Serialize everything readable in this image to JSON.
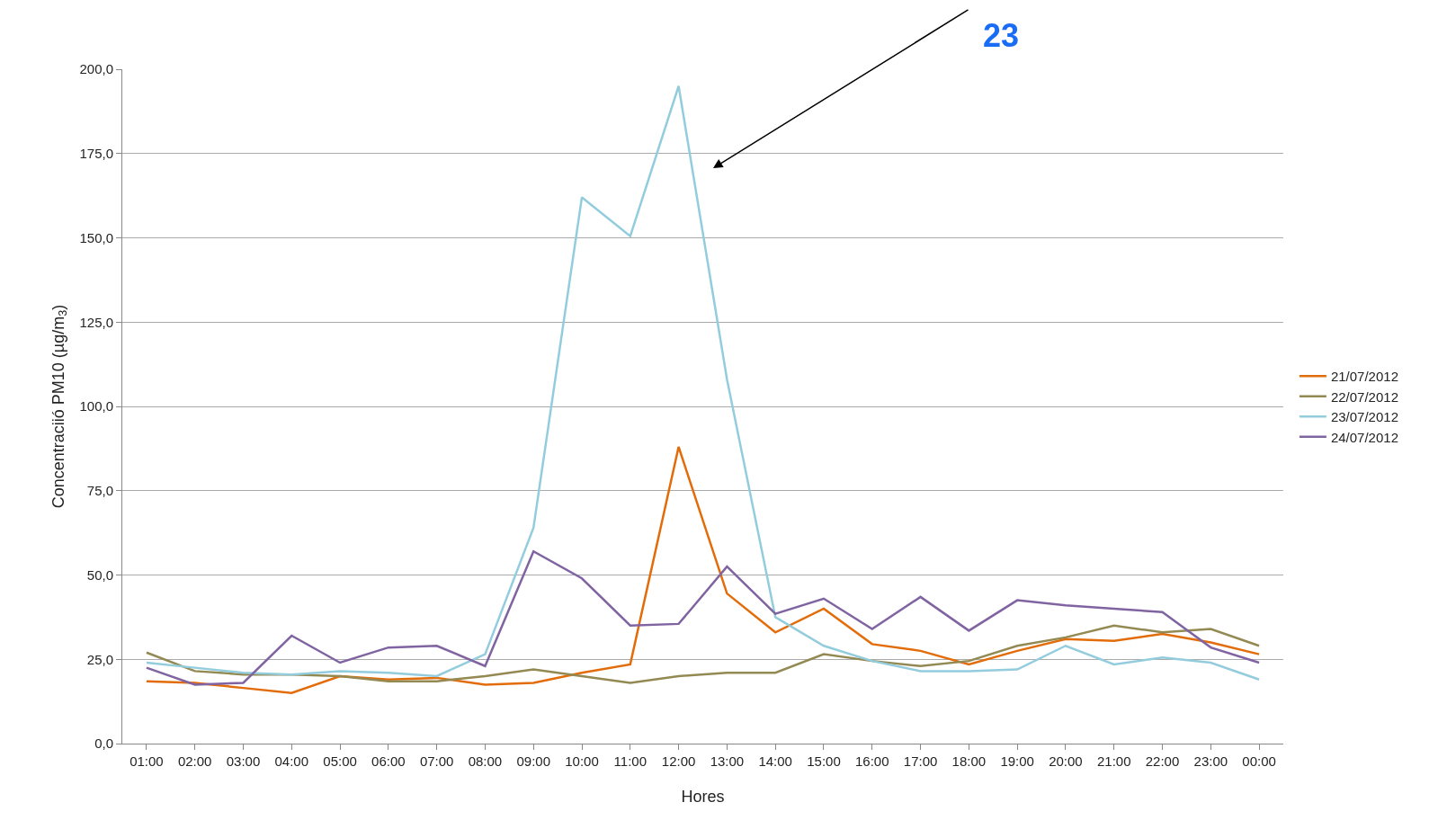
{
  "chart_data": {
    "type": "line",
    "xlabel": "Hores",
    "ylabel": "Concentraciió PM10 (µg/m$_{3}$)",
    "categories": [
      "01:00",
      "02:00",
      "03:00",
      "04:00",
      "05:00",
      "06:00",
      "07:00",
      "08:00",
      "09:00",
      "10:00",
      "11:00",
      "12:00",
      "13:00",
      "14:00",
      "15:00",
      "16:00",
      "17:00",
      "18:00",
      "19:00",
      "20:00",
      "21:00",
      "22:00",
      "23:00",
      "00:00"
    ],
    "series": [
      {
        "name": "21/07/2012",
        "color": "#e36c0a",
        "values": [
          18.5,
          18,
          16.5,
          15,
          20,
          19,
          19.5,
          17.5,
          18,
          21,
          23.5,
          88,
          44.5,
          33,
          40,
          29.5,
          27.5,
          23.5,
          27.5,
          31,
          30.5,
          32.5,
          30,
          26.5
        ]
      },
      {
        "name": "22/07/2012",
        "color": "#938953",
        "values": [
          27,
          21.5,
          20.5,
          20.5,
          20,
          18.5,
          18.5,
          20,
          22,
          20,
          18,
          20,
          21,
          21,
          26.5,
          24.5,
          23,
          24.5,
          29,
          31.5,
          35,
          33,
          34,
          29
        ]
      },
      {
        "name": "23/07/2012",
        "color": "#93cddd",
        "values": [
          24,
          22.5,
          21,
          20.5,
          21.5,
          21,
          20,
          26.5,
          64,
          162,
          150.5,
          195,
          108,
          37.5,
          29,
          24.5,
          21.5,
          21.5,
          22,
          29,
          23.5,
          25.5,
          24,
          19
        ]
      },
      {
        "name": "24/07/2012",
        "color": "#8064a2",
        "values": [
          22.5,
          17.5,
          18,
          32,
          24,
          28.5,
          29,
          23,
          57,
          49,
          35,
          35.5,
          52.5,
          38.5,
          43,
          34,
          43.5,
          33.5,
          42.5,
          41,
          40,
          39,
          28.5,
          24
        ]
      }
    ],
    "ylim": [
      0,
      200
    ],
    "yticks": [
      {
        "value": 0,
        "label": "0,0"
      },
      {
        "value": 25,
        "label": "25,0"
      },
      {
        "value": 50,
        "label": "50,0"
      },
      {
        "value": 75,
        "label": "75,0"
      },
      {
        "value": 100,
        "label": "100,0"
      },
      {
        "value": 125,
        "label": "125,0"
      },
      {
        "value": 150,
        "label": "150,0"
      },
      {
        "value": 175,
        "label": "175,0"
      },
      {
        "value": 200,
        "label": "200,0"
      }
    ],
    "grid": "y",
    "legend": "right",
    "marker": "none",
    "line_style": "solid",
    "annotations": [
      "23"
    ]
  }
}
